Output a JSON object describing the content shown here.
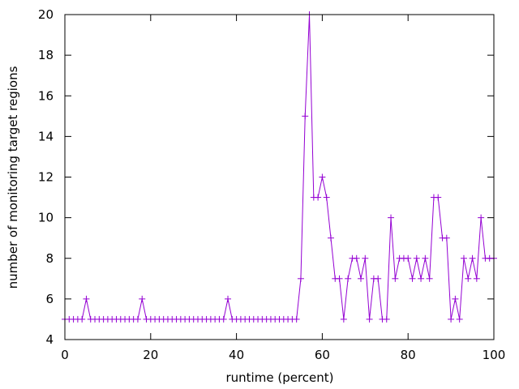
{
  "chart_data": {
    "type": "line",
    "xlabel": "runtime (percent)",
    "ylabel": "number of monitoring target regions",
    "xlim": [
      0,
      100
    ],
    "ylim": [
      4,
      20
    ],
    "xticks": [
      0,
      20,
      40,
      60,
      80,
      100
    ],
    "yticks": [
      4,
      6,
      8,
      10,
      12,
      14,
      16,
      18,
      20
    ],
    "grid": false,
    "color": "#9400d3",
    "marker": "plus",
    "series": [
      {
        "x": [
          0,
          1,
          2,
          3,
          4,
          5,
          6,
          7,
          8,
          9,
          10,
          11,
          12,
          13,
          14,
          15,
          16,
          17,
          18,
          19,
          20,
          21,
          22,
          23,
          24,
          25,
          26,
          27,
          28,
          29,
          30,
          31,
          32,
          33,
          34,
          35,
          36,
          37,
          38,
          39,
          40,
          41,
          42,
          43,
          44,
          45,
          46,
          47,
          48,
          49,
          50,
          51,
          52,
          53,
          54,
          55,
          56,
          57,
          58,
          59,
          60,
          61,
          62,
          63,
          64,
          65,
          66,
          67,
          68,
          69,
          70,
          71,
          72,
          73,
          74,
          75,
          76,
          77,
          78,
          79,
          80,
          81,
          82,
          83,
          84,
          85,
          86,
          87,
          88,
          89,
          90,
          91,
          92,
          93,
          94,
          95,
          96,
          97,
          98,
          99,
          100
        ],
        "values": [
          5,
          5,
          5,
          5,
          5,
          6,
          5,
          5,
          5,
          5,
          5,
          5,
          5,
          5,
          5,
          5,
          5,
          5,
          6,
          5,
          5,
          5,
          5,
          5,
          5,
          5,
          5,
          5,
          5,
          5,
          5,
          5,
          5,
          5,
          5,
          5,
          5,
          5,
          6,
          5,
          5,
          5,
          5,
          5,
          5,
          5,
          5,
          5,
          5,
          5,
          5,
          5,
          5,
          5,
          5,
          7,
          15,
          20,
          11,
          11,
          12,
          11,
          9,
          7,
          7,
          5,
          7,
          8,
          8,
          7,
          8,
          5,
          7,
          7,
          5,
          5,
          10,
          7,
          8,
          8,
          8,
          7,
          8,
          7,
          8,
          7,
          11,
          11,
          9,
          9,
          5,
          6,
          5,
          8,
          7,
          8,
          7,
          10,
          8,
          8,
          8
        ]
      }
    ]
  }
}
